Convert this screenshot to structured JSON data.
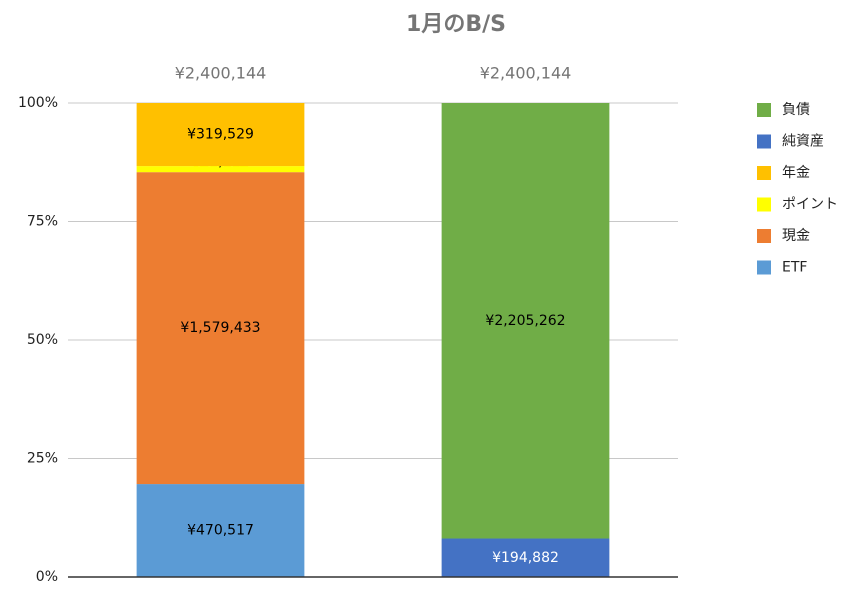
{
  "chart_data": {
    "type": "stacked_percent_bar",
    "title": "1月のB/S",
    "categories": [
      null,
      null
    ],
    "totals": [
      2400144,
      2400144
    ],
    "total_labels": [
      "¥2,400,144",
      "¥2,400,144"
    ],
    "series": [
      {
        "name": "負債",
        "color": "#70ad47",
        "label_color": "#000000",
        "values": [
          null,
          2205262
        ],
        "value_labels": [
          null,
          "¥2,205,262"
        ]
      },
      {
        "name": "純資産",
        "color": "#4472c4",
        "label_color": "#ffffff",
        "values": [
          null,
          194882
        ],
        "value_labels": [
          null,
          "¥194,882"
        ]
      },
      {
        "name": "年金",
        "color": "#ffc000",
        "label_color": "#000000",
        "values": [
          319529,
          null
        ],
        "value_labels": [
          "¥319,529",
          null
        ]
      },
      {
        "name": "ポイント",
        "color": "#ffff00",
        "label_color": "#000000",
        "values": [
          30665,
          null
        ],
        "value_labels": [
          "¥30,665",
          null
        ]
      },
      {
        "name": "現金",
        "color": "#ed7d31",
        "label_color": "#000000",
        "values": [
          1579433,
          null
        ],
        "value_labels": [
          "¥1,579,433",
          null
        ]
      },
      {
        "name": "ETF",
        "color": "#5b9bd5",
        "label_color": "#000000",
        "values": [
          470517,
          null
        ],
        "value_labels": [
          "¥470,517",
          null
        ]
      }
    ],
    "ylim": [
      0,
      100
    ],
    "yticks": [
      {
        "value": 0,
        "label": "0%"
      },
      {
        "value": 25,
        "label": "25%"
      },
      {
        "value": 50,
        "label": "50%"
      },
      {
        "value": 75,
        "label": "75%"
      },
      {
        "value": 100,
        "label": "100%"
      }
    ],
    "grid": true,
    "legend": "right"
  }
}
